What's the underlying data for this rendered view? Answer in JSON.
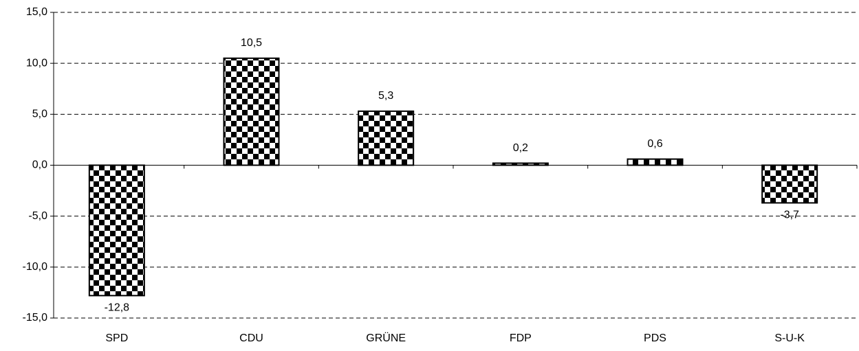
{
  "chart_data": {
    "type": "bar",
    "categories": [
      "SPD",
      "CDU",
      "GRÜNE",
      "FDP",
      "PDS",
      "S-U-K"
    ],
    "values": [
      -12.8,
      10.5,
      5.3,
      0.2,
      0.6,
      -3.7
    ],
    "value_labels": [
      "-12,8",
      "10,5",
      "5,3",
      "0,2",
      "0,6",
      "-3,7"
    ],
    "ylim": [
      -15,
      15
    ],
    "yticks": [
      {
        "value": -15,
        "label": "-15,0"
      },
      {
        "value": -10,
        "label": "-10,0"
      },
      {
        "value": -5,
        "label": "-5,0"
      },
      {
        "value": 0,
        "label": "0,0"
      },
      {
        "value": 5,
        "label": "5,0"
      },
      {
        "value": 10,
        "label": "10,0"
      },
      {
        "value": 15,
        "label": "15,0"
      }
    ],
    "grid": true,
    "color": "#000000"
  }
}
